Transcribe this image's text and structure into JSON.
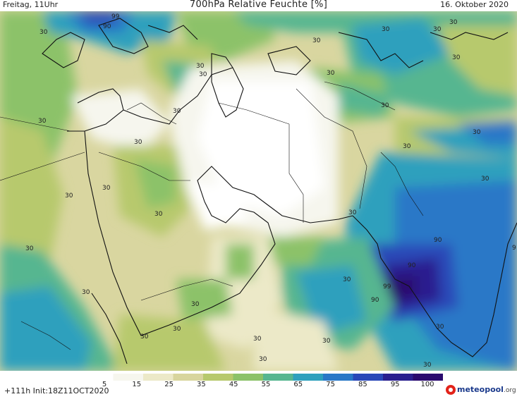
{
  "header": {
    "valid_time": "Freitag, 11Uhr",
    "title": "700hPa Relative Feuchte [%]",
    "date": "16. Oktober 2020"
  },
  "footer": {
    "run_info": "+111h Init:18Z11OCT2020",
    "logo_brand": "meteopool",
    "logo_suffix": ".org"
  },
  "legend": {
    "ticks": [
      "5",
      "15",
      "25",
      "35",
      "45",
      "55",
      "65",
      "75",
      "85",
      "95",
      "100"
    ],
    "colors": [
      "#ffffff",
      "#f6f6ee",
      "#ece9c8",
      "#d8d59e",
      "#b7c96d",
      "#8cc269",
      "#57b690",
      "#2ea0bd",
      "#2a78c7",
      "#2a48b8",
      "#2a1f8f",
      "#2a0a6e"
    ]
  },
  "contour_labels": [
    "99",
    "90",
    "30",
    "30",
    "30",
    "30",
    "30",
    "30",
    "30",
    "30",
    "30",
    "30",
    "30",
    "30",
    "30",
    "30",
    "30",
    "30",
    "30",
    "30",
    "30",
    "30",
    "30",
    "30",
    "30",
    "30",
    "30",
    "30",
    "30",
    "90",
    "90",
    "99",
    "90",
    "30",
    "30",
    "30",
    "30",
    "9"
  ]
}
